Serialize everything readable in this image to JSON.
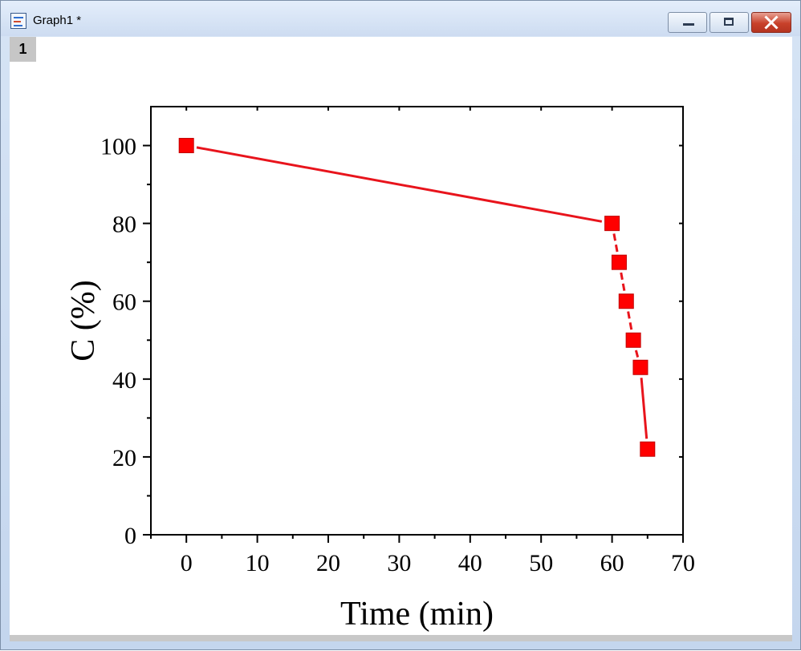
{
  "window": {
    "title": "Graph1 *",
    "layer_label": "1",
    "icons": {
      "app": "graph-window-icon",
      "minimize": "minimize-icon",
      "maximize": "maximize-icon",
      "close": "close-icon"
    }
  },
  "colors": {
    "series": "#ff0000",
    "series_line": "#e8141c",
    "axis": "#000000",
    "close_button": "#c8412a"
  },
  "chart_data": {
    "type": "line",
    "title": "",
    "xlabel": "Time (min)",
    "ylabel": "C (%)",
    "xlim": [
      -5,
      70
    ],
    "ylim": [
      0,
      110
    ],
    "xticks": [
      0,
      10,
      20,
      30,
      40,
      50,
      60,
      70
    ],
    "yticks": [
      0,
      20,
      40,
      60,
      80,
      100
    ],
    "grid": false,
    "legend": false,
    "marker": "square",
    "series": [
      {
        "x": [
          0,
          60,
          61,
          62,
          63,
          64,
          65
        ],
        "y": [
          100,
          80,
          70,
          60,
          50,
          43,
          22
        ]
      }
    ]
  }
}
